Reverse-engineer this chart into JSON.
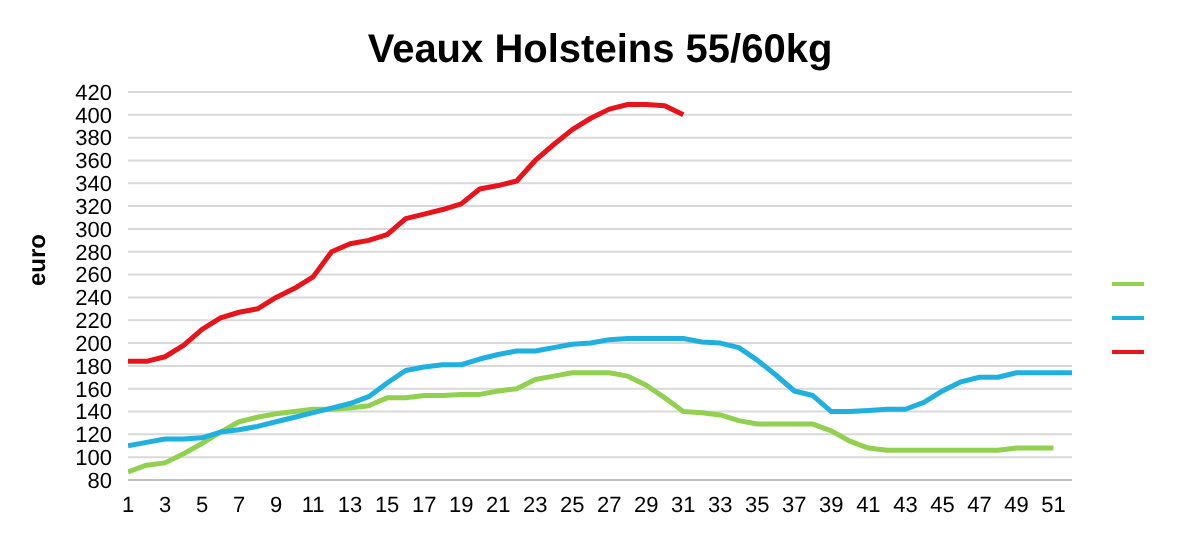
{
  "chart_data": {
    "type": "line",
    "title": "Veaux Holsteins 55/60kg",
    "ylabel": "euro",
    "x": [
      1,
      2,
      3,
      4,
      5,
      6,
      7,
      8,
      9,
      10,
      11,
      12,
      13,
      14,
      15,
      16,
      17,
      18,
      19,
      20,
      21,
      22,
      23,
      24,
      25,
      26,
      27,
      28,
      29,
      30,
      31,
      32,
      33,
      34,
      35,
      36,
      37,
      38,
      39,
      40,
      41,
      42,
      43,
      44,
      45,
      46,
      47,
      48,
      49,
      50,
      51,
      52
    ],
    "series": [
      {
        "color": "#92d050",
        "values": [
          87,
          93,
          95,
          103,
          112,
          122,
          131,
          135,
          138,
          140,
          142,
          142,
          143,
          145,
          152,
          152,
          154,
          154,
          155,
          155,
          158,
          160,
          168,
          171,
          174,
          174,
          174,
          171,
          163,
          152,
          140,
          139,
          137,
          132,
          129,
          129,
          129,
          129,
          123,
          114,
          108,
          106,
          106,
          106,
          106,
          106,
          106,
          106,
          108,
          108,
          108,
          null
        ]
      },
      {
        "color": "#1fb0e0",
        "values": [
          110,
          113,
          116,
          116,
          117,
          122,
          124,
          127,
          131,
          135,
          139,
          143,
          147,
          153,
          165,
          176,
          179,
          181,
          181,
          186,
          190,
          193,
          193,
          196,
          199,
          200,
          203,
          204,
          204,
          204,
          204,
          201,
          200,
          196,
          185,
          172,
          158,
          154,
          140,
          140,
          141,
          142,
          142,
          148,
          158,
          166,
          170,
          170,
          174,
          174,
          174,
          174
        ]
      },
      {
        "color": "#e8141b",
        "values": [
          184,
          184,
          188,
          198,
          212,
          222,
          227,
          230,
          240,
          248,
          258,
          280,
          287,
          290,
          295,
          309,
          313,
          317,
          322,
          335,
          338,
          342,
          360,
          374,
          387,
          397,
          405,
          409,
          409,
          408,
          400,
          null,
          null,
          null,
          null,
          null,
          null,
          null,
          null,
          null,
          null,
          null,
          null,
          null,
          null,
          null,
          null,
          null,
          null,
          null,
          null,
          null
        ]
      }
    ],
    "xlim": [
      1,
      52
    ],
    "xticks": [
      1,
      3,
      5,
      7,
      9,
      11,
      13,
      15,
      17,
      19,
      21,
      23,
      25,
      27,
      29,
      31,
      33,
      35,
      37,
      39,
      41,
      43,
      45,
      47,
      49,
      51
    ],
    "ylim": [
      80,
      420
    ],
    "yticks": [
      80,
      100,
      120,
      140,
      160,
      180,
      200,
      220,
      240,
      260,
      280,
      300,
      320,
      340,
      360,
      380,
      400,
      420
    ],
    "grid": "y",
    "marker": "none",
    "line_style": "solid"
  }
}
